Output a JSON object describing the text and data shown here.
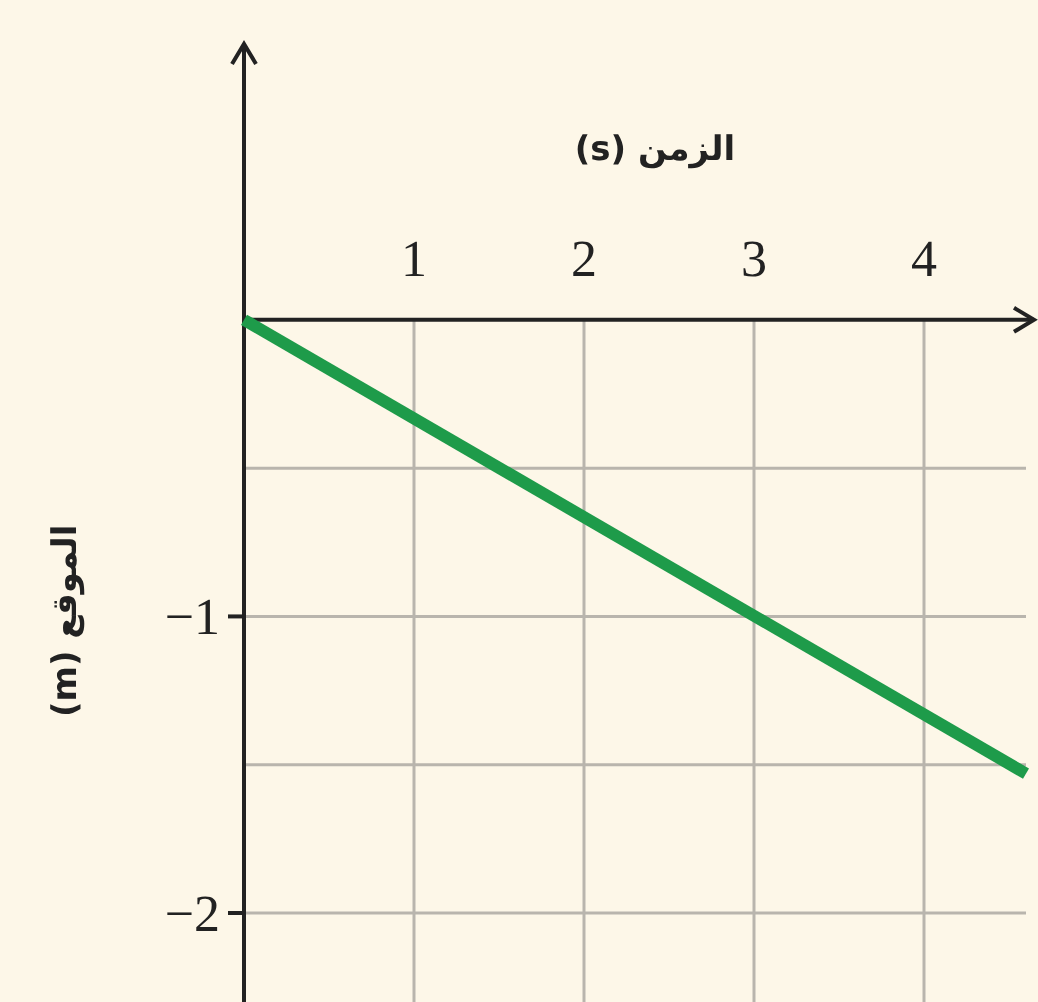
{
  "chart_data": {
    "type": "line",
    "xlabel": "الزمن (s)",
    "ylabel": "الموقع (m)",
    "x": [
      0,
      4.6
    ],
    "series": [
      {
        "color": "#1e9b4a",
        "values": [
          0,
          -1.53
        ]
      }
    ],
    "xlim": [
      0,
      4.6
    ],
    "ylim": [
      -2.3,
      0.93
    ],
    "xticks": [
      1,
      2,
      3,
      4
    ],
    "yticks": [
      {
        "value": -0.5,
        "label": null
      },
      {
        "value": -1,
        "label": "−1"
      },
      {
        "value": -1.5,
        "label": null
      },
      {
        "value": -2,
        "label": "−2"
      }
    ],
    "grid": true,
    "marker": "none",
    "line_style": "solid"
  }
}
